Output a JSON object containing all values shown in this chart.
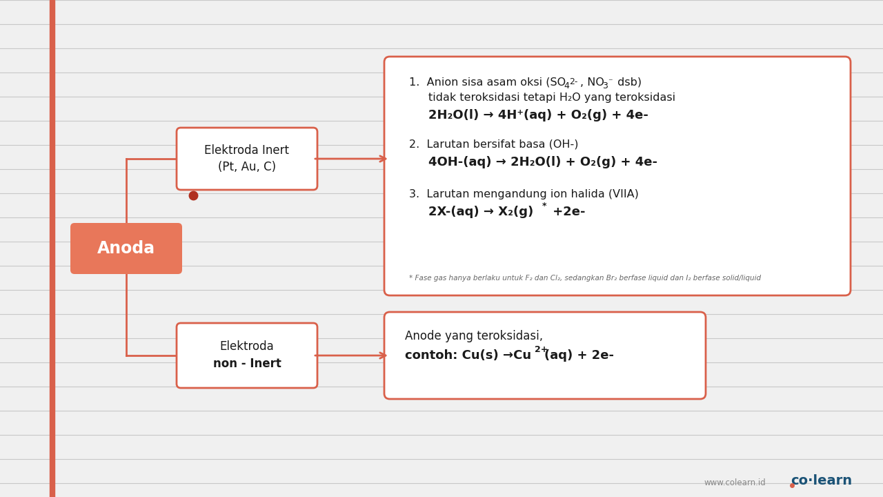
{
  "bg_color": "#f0f0f0",
  "line_color": "#d9604a",
  "salmon_color": "#e8775a",
  "box_border_color": "#d9604a",
  "text_dark": "#1a1a1a",
  "anoda_label": "Anoda",
  "anoda_bg": "#e8775a",
  "anoda_text_color": "#ffffff",
  "box1_line1": "Elektroda Inert",
  "box1_line2": "(Pt, Au, C)",
  "box2_line1": "Elektroda",
  "box2_line2": "non - Inert",
  "colearn_text": "co·learn",
  "website_text": "www.colearn.id",
  "grid_line_color": "#c8c8c8",
  "dot_color": "#b03020"
}
